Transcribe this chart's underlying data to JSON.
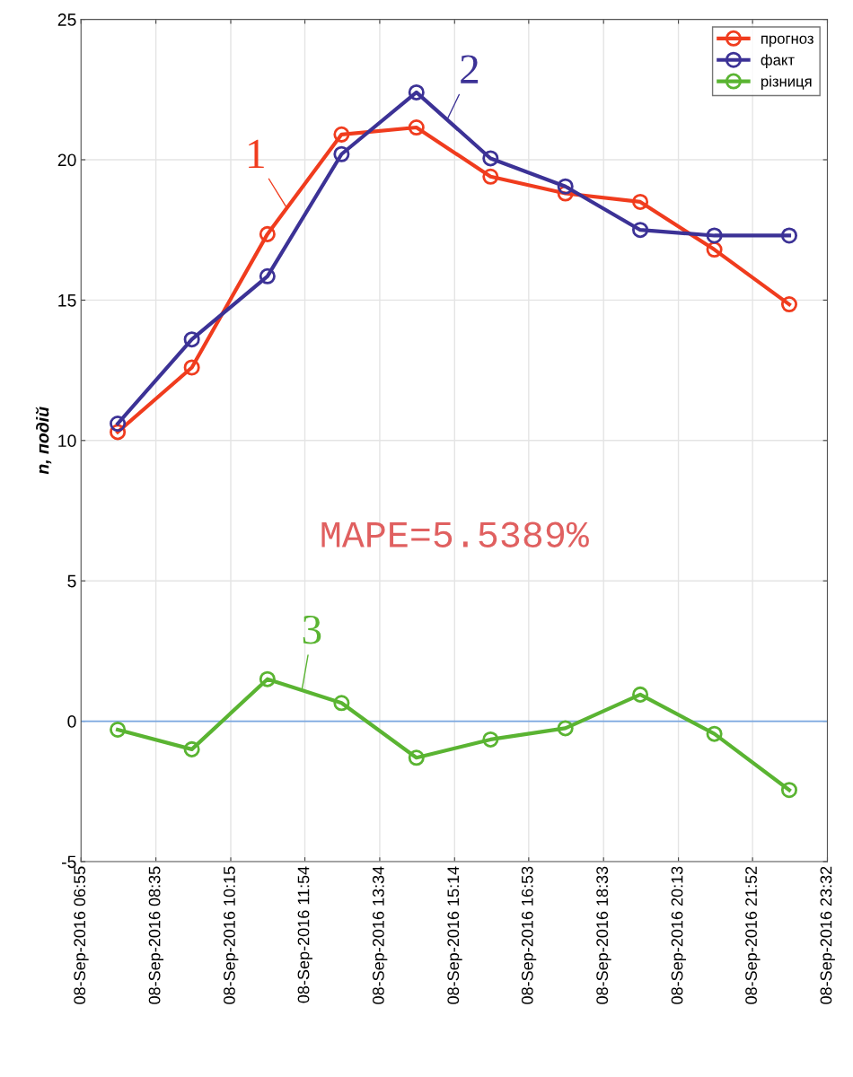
{
  "chart_data": {
    "type": "line",
    "ylabel": "n, подій",
    "x": [
      "2016-09-08T07:44",
      "2016-09-08T09:23",
      "2016-09-08T11:04",
      "2016-09-08T12:43",
      "2016-09-08T14:23",
      "2016-09-08T16:02",
      "2016-09-08T17:42",
      "2016-09-08T19:22",
      "2016-09-08T21:01",
      "2016-09-08T22:41"
    ],
    "series": [
      {
        "name": "прогноз",
        "color": "#f03c1e",
        "values": [
          10.3,
          12.6,
          17.35,
          20.9,
          21.15,
          19.4,
          18.8,
          18.5,
          16.8,
          14.85
        ]
      },
      {
        "name": "факт",
        "color": "#3c3296",
        "values": [
          10.6,
          13.6,
          15.85,
          20.2,
          22.4,
          20.05,
          19.05,
          17.5,
          17.3,
          17.3
        ]
      },
      {
        "name": "різниця",
        "color": "#5ab432",
        "values": [
          -0.3,
          -1.0,
          1.5,
          0.65,
          -1.3,
          -0.65,
          -0.25,
          0.95,
          -0.45,
          -2.45
        ]
      }
    ],
    "xlim": [
      "2016-09-08T06:55",
      "2016-09-08T23:32"
    ],
    "xticks": [
      {
        "value": "2016-09-08T06:55",
        "label": "08-Sep-2016 06:55"
      },
      {
        "value": "2016-09-08T08:35",
        "label": "08-Sep-2016 08:35"
      },
      {
        "value": "2016-09-08T10:15",
        "label": "08-Sep-2016 10:15"
      },
      {
        "value": "2016-09-08T11:54",
        "label": "08-Sep-2016 11:54"
      },
      {
        "value": "2016-09-08T13:34",
        "label": "08-Sep-2016 13:34"
      },
      {
        "value": "2016-09-08T15:14",
        "label": "08-Sep-2016 15:14"
      },
      {
        "value": "2016-09-08T16:53",
        "label": "08-Sep-2016 16:53"
      },
      {
        "value": "2016-09-08T18:33",
        "label": "08-Sep-2016 18:33"
      },
      {
        "value": "2016-09-08T20:13",
        "label": "08-Sep-2016 20:13"
      },
      {
        "value": "2016-09-08T21:52",
        "label": "08-Sep-2016 21:52"
      },
      {
        "value": "2016-09-08T23:32",
        "label": "08-Sep-2016 23:32"
      }
    ],
    "ylim": [
      -5,
      25
    ],
    "yticks": [
      -5,
      0,
      5,
      10,
      15,
      20,
      25
    ],
    "ref_lines": [
      {
        "axis": "y",
        "value": 0,
        "color": "#7aa7e0"
      }
    ],
    "annotations": [
      {
        "text": "1",
        "x": "2016-09-08T11:30",
        "y": 18.28
      },
      {
        "text": "2",
        "x": "2016-09-08T15:04",
        "y": 21.43
      },
      {
        "text": "3",
        "x": "2016-09-08T11:50",
        "y": 1.11
      },
      "MAPE=5.5389%"
    ],
    "grid": true,
    "legend": "top right",
    "marker": "circle",
    "line_style": "solid"
  }
}
